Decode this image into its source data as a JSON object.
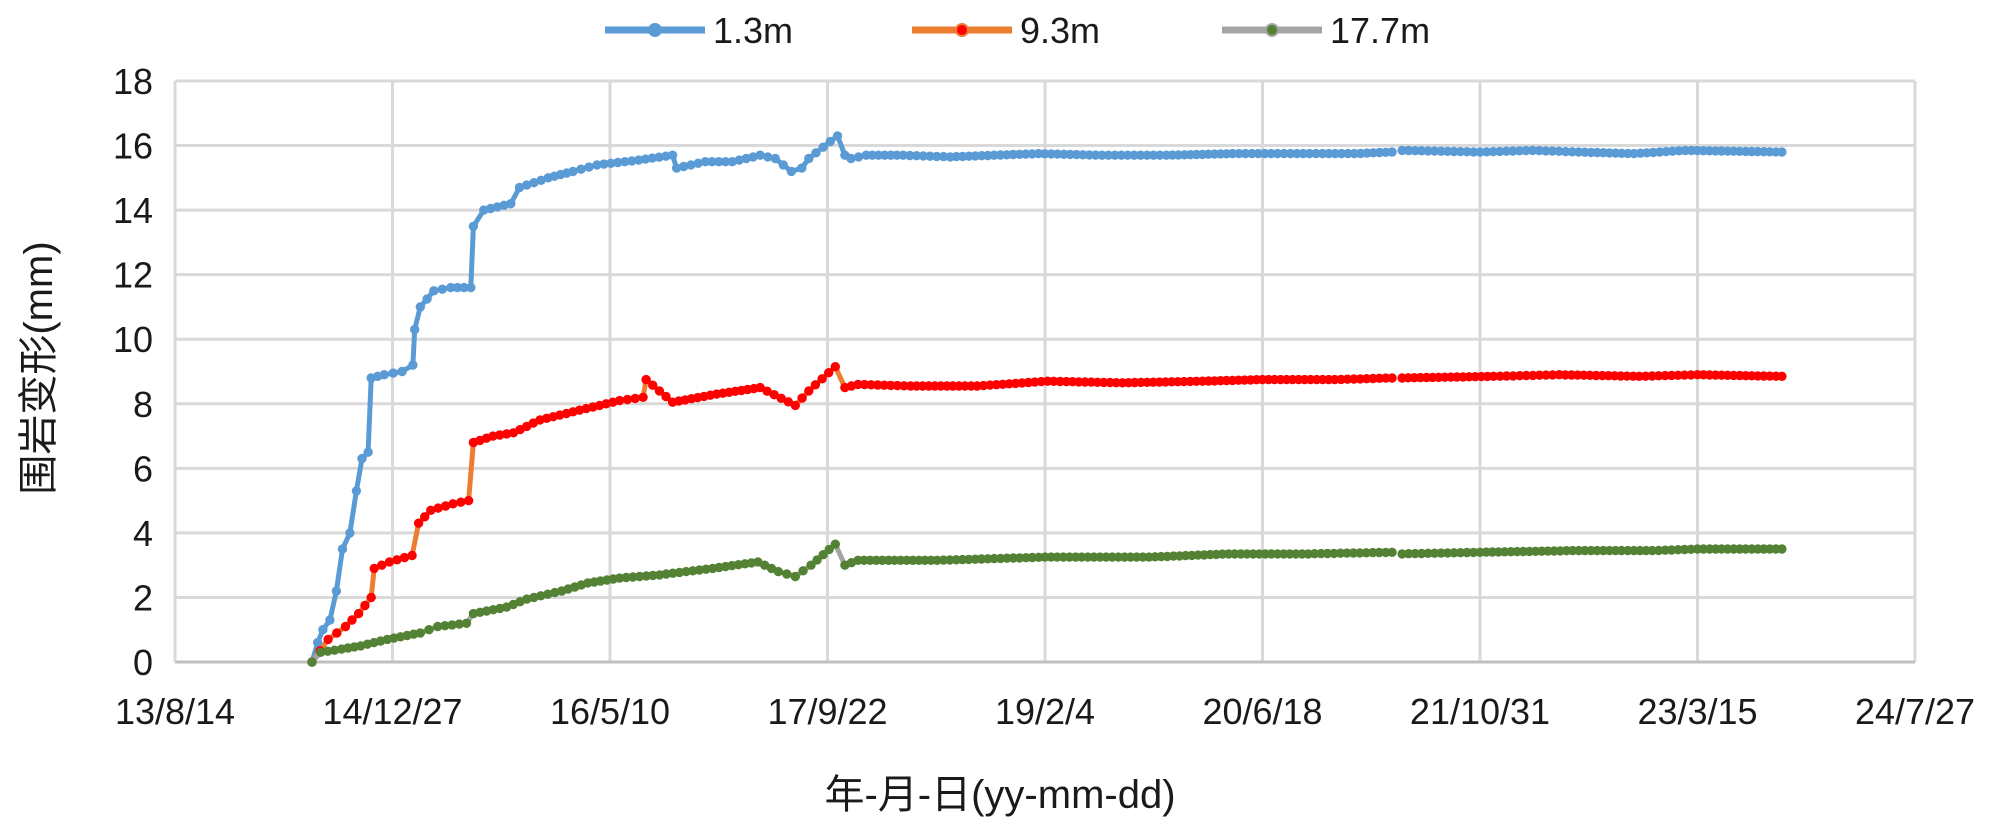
{
  "chart_data": {
    "type": "line",
    "title": "",
    "xlabel": "年-月-日(yy-mm-dd)",
    "ylabel": "围岩变形(mm)",
    "x_ticks": [
      "13/8/14",
      "14/12/27",
      "16/5/10",
      "17/9/22",
      "19/2/4",
      "20/6/18",
      "21/10/31",
      "23/3/15",
      "24/7/27"
    ],
    "xlim": [
      "13/8/14",
      "24/7/27"
    ],
    "y_ticks": [
      "0",
      "2",
      "4",
      "6",
      "8",
      "10",
      "12",
      "14",
      "16",
      "18"
    ],
    "ylim": [
      0,
      18
    ],
    "grid": true,
    "legend_position": "top-center",
    "series": [
      {
        "name": "1.3m",
        "color": "#5b9bd5",
        "marker_color": "#5b9bd5",
        "points": [
          [
            "14/6/25",
            0.0
          ],
          [
            "14/7/8",
            0.6
          ],
          [
            "14/7/20",
            1.0
          ],
          [
            "14/8/5",
            1.3
          ],
          [
            "14/8/20",
            2.2
          ],
          [
            "14/9/3",
            3.5
          ],
          [
            "14/9/20",
            4.0
          ],
          [
            "14/10/5",
            5.3
          ],
          [
            "14/10/18",
            6.3
          ],
          [
            "14/11/1",
            6.5
          ],
          [
            "14/11/8",
            8.8
          ],
          [
            "14/12/8",
            8.9
          ],
          [
            "15/1/18",
            9.0
          ],
          [
            "15/2/12",
            9.2
          ],
          [
            "15/2/16",
            10.3
          ],
          [
            "15/3/1",
            11.0
          ],
          [
            "15/4/1",
            11.5
          ],
          [
            "15/5/10",
            11.6
          ],
          [
            "15/6/25",
            11.6
          ],
          [
            "15/7/1",
            13.5
          ],
          [
            "15/7/25",
            14.0
          ],
          [
            "15/9/25",
            14.2
          ],
          [
            "15/10/15",
            14.7
          ],
          [
            "15/12/20",
            15.0
          ],
          [
            "16/2/15",
            15.2
          ],
          [
            "16/4/10",
            15.4
          ],
          [
            "16/7/15",
            15.55
          ],
          [
            "16/10/1",
            15.7
          ],
          [
            "16/10/10",
            15.3
          ],
          [
            "16/12/15",
            15.5
          ],
          [
            "17/2/15",
            15.5
          ],
          [
            "17/4/20",
            15.7
          ],
          [
            "17/5/25",
            15.6
          ],
          [
            "17/7/1",
            15.2
          ],
          [
            "17/7/25",
            15.3
          ],
          [
            "17/8/10",
            15.6
          ],
          [
            "17/10/15",
            16.3
          ],
          [
            "17/11/1",
            15.7
          ],
          [
            "17/11/15",
            15.6
          ],
          [
            "17/12/20",
            15.7
          ],
          [
            "18/3/15",
            15.7
          ],
          [
            "18/7/1",
            15.65
          ],
          [
            "18/10/10",
            15.7
          ],
          [
            "19/1/20",
            15.75
          ],
          [
            "19/6/15",
            15.7
          ],
          [
            "19/11/10",
            15.7
          ],
          [
            "20/4/10",
            15.75
          ],
          [
            "20/9/5",
            15.75
          ],
          [
            "21/1/15",
            15.75
          ],
          [
            "21/4/12",
            15.8
          ],
          [
            "21/5/5",
            15.85
          ],
          [
            "21/10/31",
            15.8
          ],
          [
            "22/3/1",
            15.85
          ],
          [
            "22/6/15",
            15.8
          ],
          [
            "22/10/20",
            15.75
          ],
          [
            "23/2/15",
            15.85
          ],
          [
            "23/9/25",
            15.8
          ]
        ]
      },
      {
        "name": "9.3m",
        "color": "#ed7d31",
        "marker_color": "#ff0000",
        "points": [
          [
            "14/6/25",
            0.0
          ],
          [
            "14/8/1",
            0.7
          ],
          [
            "14/9/10",
            1.1
          ],
          [
            "14/10/10",
            1.5
          ],
          [
            "14/11/8",
            2.0
          ],
          [
            "14/11/15",
            2.9
          ],
          [
            "14/12/20",
            3.1
          ],
          [
            "15/2/10",
            3.3
          ],
          [
            "15/2/25",
            4.3
          ],
          [
            "15/3/25",
            4.7
          ],
          [
            "15/5/15",
            4.9
          ],
          [
            "15/6/20",
            5.0
          ],
          [
            "15/7/1",
            6.8
          ],
          [
            "15/8/15",
            7.0
          ],
          [
            "15/10/1",
            7.1
          ],
          [
            "15/12/1",
            7.5
          ],
          [
            "16/3/1",
            7.8
          ],
          [
            "16/6/1",
            8.1
          ],
          [
            "16/7/25",
            8.2
          ],
          [
            "16/8/1",
            8.75
          ],
          [
            "16/10/1",
            8.05
          ],
          [
            "17/1/10",
            8.3
          ],
          [
            "17/4/20",
            8.5
          ],
          [
            "17/7/10",
            7.95
          ],
          [
            "17/8/10",
            8.4
          ],
          [
            "17/10/10",
            9.15
          ],
          [
            "17/11/1",
            8.5
          ],
          [
            "17/12/1",
            8.6
          ],
          [
            "18/4/1",
            8.55
          ],
          [
            "18/9/1",
            8.55
          ],
          [
            "19/2/10",
            8.7
          ],
          [
            "19/8/1",
            8.65
          ],
          [
            "20/2/1",
            8.7
          ],
          [
            "20/6/18",
            8.75
          ],
          [
            "20/12/1",
            8.75
          ],
          [
            "21/4/12",
            8.8
          ],
          [
            "21/5/5",
            8.8
          ],
          [
            "21/12/1",
            8.85
          ],
          [
            "22/5/1",
            8.9
          ],
          [
            "22/11/1",
            8.85
          ],
          [
            "23/3/15",
            8.9
          ],
          [
            "23/9/25",
            8.85
          ]
        ]
      },
      {
        "name": "17.7m",
        "color": "#a5a5a5",
        "marker_color": "#548235",
        "points": [
          [
            "14/6/25",
            0.0
          ],
          [
            "14/7/15",
            0.3
          ],
          [
            "14/9/1",
            0.4
          ],
          [
            "14/10/15",
            0.5
          ],
          [
            "14/12/15",
            0.7
          ],
          [
            "15/3/1",
            0.9
          ],
          [
            "15/4/10",
            1.1
          ],
          [
            "15/6/15",
            1.2
          ],
          [
            "15/7/1",
            1.5
          ],
          [
            "15/9/15",
            1.7
          ],
          [
            "15/11/1",
            1.95
          ],
          [
            "16/1/20",
            2.2
          ],
          [
            "16/3/20",
            2.45
          ],
          [
            "16/6/1",
            2.6
          ],
          [
            "16/9/1",
            2.7
          ],
          [
            "17/1/1",
            2.9
          ],
          [
            "17/4/15",
            3.1
          ],
          [
            "17/6/1",
            2.8
          ],
          [
            "17/7/10",
            2.65
          ],
          [
            "17/8/15",
            3.0
          ],
          [
            "17/10/10",
            3.65
          ],
          [
            "17/11/1",
            3.0
          ],
          [
            "17/12/1",
            3.15
          ],
          [
            "18/6/1",
            3.15
          ],
          [
            "19/2/4",
            3.25
          ],
          [
            "19/10/1",
            3.25
          ],
          [
            "20/4/1",
            3.35
          ],
          [
            "20/10/1",
            3.35
          ],
          [
            "21/4/12",
            3.4
          ],
          [
            "21/5/5",
            3.35
          ],
          [
            "21/10/31",
            3.4
          ],
          [
            "22/6/1",
            3.45
          ],
          [
            "22/12/1",
            3.45
          ],
          [
            "23/3/15",
            3.5
          ],
          [
            "23/9/25",
            3.5
          ]
        ]
      }
    ],
    "gaps": [
      [
        "21/4/12",
        "21/5/5"
      ]
    ]
  }
}
